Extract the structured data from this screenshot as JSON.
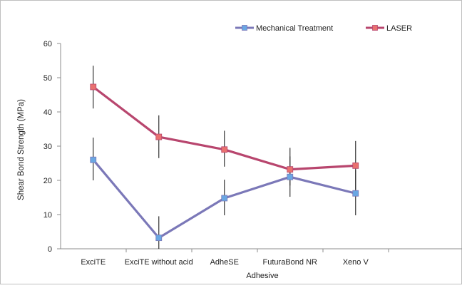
{
  "colors": {
    "mechanical": "#7b78b8",
    "laser": "#b8466e",
    "mechanical_marker": "#6aa7e3",
    "laser_marker": "#e9716f",
    "axis": "#8c8c8c",
    "error_bar": "#333333",
    "frame": "#bfbfbf"
  },
  "chart_data": {
    "type": "line",
    "title": "",
    "xlabel": "Adhesive",
    "ylabel": "Shear Bond Strength (MPa)",
    "categories": [
      "ExciTE",
      "ExciTE without acid",
      "AdheSE",
      "FuturaBond NR",
      "Xeno V"
    ],
    "ylim": [
      0,
      60
    ],
    "yticks": [
      0,
      10,
      20,
      30,
      40,
      50,
      60
    ],
    "grid": false,
    "legend_position": "top-right",
    "series": [
      {
        "name": "Mechanical Treatment",
        "marker": "square",
        "values": [
          26,
          3.2,
          14.8,
          21,
          16.2
        ],
        "error_low": [
          20,
          0,
          9.8,
          15.2,
          9.8
        ],
        "error_high": [
          32.5,
          9.5,
          20.2,
          27,
          23
        ]
      },
      {
        "name": "LASER",
        "marker": "square",
        "values": [
          47.3,
          32.7,
          29,
          23.2,
          24.3
        ],
        "error_low": [
          41,
          26.5,
          24,
          18.5,
          17.3
        ],
        "error_high": [
          53.5,
          39,
          34.5,
          29.5,
          31.5
        ]
      }
    ]
  }
}
